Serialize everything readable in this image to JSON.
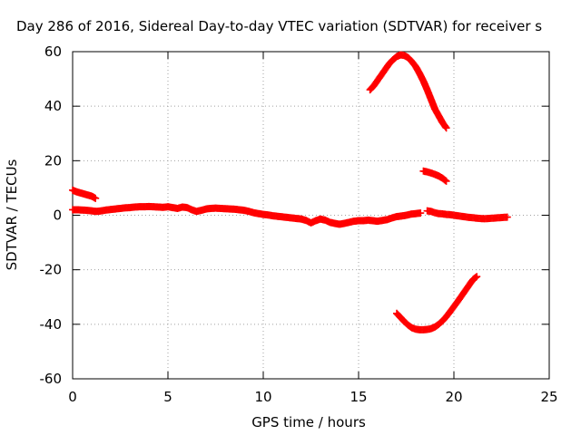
{
  "chart_data": {
    "type": "scatter",
    "title": "Day 286 of 2016, Sidereal Day-to-day VTEC variation (SDTVAR) for receiver s",
    "xlabel": "GPS time / hours",
    "ylabel": "SDTVAR / TECUs",
    "xlim": [
      0,
      25
    ],
    "ylim": [
      -60,
      60
    ],
    "xticks": [
      0,
      5,
      10,
      15,
      20,
      25
    ],
    "yticks": [
      -60,
      -40,
      -20,
      0,
      20,
      40,
      60
    ],
    "xtick_labels": [
      "0",
      "5",
      "10",
      "15",
      "20",
      "25"
    ],
    "ytick_labels": [
      "-60",
      "-40",
      "-20",
      "0",
      "20",
      "40",
      "60"
    ],
    "grid": true,
    "marker": "plus",
    "color": "#ff0000",
    "series": [
      {
        "x": [
          0,
          0.1,
          0.2,
          0.3,
          0.4,
          0.5,
          0.6,
          0.7,
          0.8,
          0.9,
          1.0,
          1.1,
          1.2
        ],
        "y": [
          9.2,
          8.9,
          8.6,
          8.4,
          8.2,
          8.0,
          7.8,
          7.6,
          7.4,
          7.2,
          7.0,
          6.6,
          6.2
        ]
      },
      {
        "x": [
          0,
          0.25,
          0.5,
          0.75,
          1.0,
          1.25,
          1.5,
          1.75,
          2.0,
          2.25,
          2.5,
          2.75,
          3.0,
          3.25,
          3.5,
          3.75,
          4.0,
          4.25,
          4.5,
          4.75,
          5.0,
          5.25,
          5.5,
          5.75,
          6.0,
          6.25,
          6.5,
          6.75,
          7.0,
          7.25,
          7.5,
          7.75,
          8.0,
          8.25,
          8.5,
          8.75,
          9.0,
          9.25,
          9.5,
          9.75,
          10.0,
          10.25,
          10.5,
          10.75,
          11.0,
          11.25,
          11.5,
          11.75,
          12.0,
          12.25,
          12.5,
          12.75,
          13.0,
          13.25,
          13.5,
          13.75,
          14.0,
          14.25,
          14.5,
          14.75,
          15.0,
          15.25,
          15.5,
          15.75,
          16.0,
          16.25,
          16.5,
          16.75,
          17.0,
          17.25,
          17.5,
          17.75,
          18.0,
          18.25
        ],
        "y": [
          2.0,
          2.0,
          1.9,
          1.8,
          1.6,
          1.4,
          1.6,
          1.9,
          2.1,
          2.3,
          2.5,
          2.7,
          2.8,
          3.0,
          3.1,
          3.1,
          3.2,
          3.1,
          3.0,
          2.9,
          3.1,
          2.8,
          2.5,
          3.0,
          2.8,
          2.0,
          1.4,
          1.8,
          2.3,
          2.5,
          2.6,
          2.5,
          2.4,
          2.3,
          2.2,
          2.0,
          1.8,
          1.4,
          0.9,
          0.6,
          0.3,
          0.1,
          -0.2,
          -0.4,
          -0.6,
          -0.8,
          -1.0,
          -1.2,
          -1.4,
          -1.9,
          -2.8,
          -2.0,
          -1.4,
          -1.8,
          -2.6,
          -3.0,
          -3.3,
          -3.0,
          -2.6,
          -2.2,
          -2.0,
          -2.0,
          -1.8,
          -2.0,
          -2.2,
          -1.9,
          -1.6,
          -1.0,
          -0.5,
          -0.3,
          0.0,
          0.4,
          0.6,
          0.8
        ]
      },
      {
        "x": [
          18.6,
          18.8,
          19.0,
          19.2,
          19.4,
          19.6,
          19.8,
          20.0,
          20.2,
          20.4,
          20.6,
          20.8,
          21.0,
          21.2,
          21.4,
          21.6,
          21.8,
          22.0,
          22.2,
          22.4,
          22.6,
          22.8
        ],
        "y": [
          1.6,
          1.4,
          0.9,
          0.6,
          0.5,
          0.3,
          0.2,
          0.0,
          -0.2,
          -0.4,
          -0.6,
          -0.8,
          -0.9,
          -1.1,
          -1.2,
          -1.3,
          -1.2,
          -1.1,
          -1.0,
          -0.9,
          -0.8,
          -0.7
        ]
      },
      {
        "x": [
          15.6,
          15.8,
          16.0,
          16.2,
          16.4,
          16.6,
          16.8,
          17.0,
          17.2,
          17.4,
          17.6,
          17.8,
          18.0,
          18.2,
          18.4,
          18.6,
          18.8,
          19.0,
          19.2,
          19.4,
          19.6
        ],
        "y": [
          46.0,
          47.5,
          49.5,
          51.5,
          53.5,
          55.5,
          57.0,
          58.2,
          58.8,
          58.6,
          57.8,
          56.3,
          54.5,
          52.0,
          49.2,
          46.0,
          42.5,
          39.0,
          36.5,
          34.0,
          32.0
        ]
      },
      {
        "x": [
          18.4,
          18.6,
          18.8,
          19.0,
          19.2,
          19.4,
          19.6
        ],
        "y": [
          16.2,
          15.9,
          15.5,
          15.0,
          14.4,
          13.6,
          12.5
        ]
      },
      {
        "x": [
          17.0,
          17.2,
          17.4,
          17.6,
          17.8,
          18.0,
          18.2,
          18.4,
          18.6,
          18.8,
          19.0,
          19.2,
          19.4,
          19.6,
          19.8,
          20.0,
          20.2,
          20.4,
          20.6,
          20.8,
          21.0,
          21.2
        ],
        "y": [
          -36.0,
          -37.5,
          -39.0,
          -40.3,
          -41.3,
          -41.8,
          -42.0,
          -42.0,
          -41.9,
          -41.6,
          -41.0,
          -40.0,
          -38.8,
          -37.2,
          -35.4,
          -33.5,
          -31.6,
          -29.6,
          -27.6,
          -25.6,
          -23.6,
          -22.5
        ]
      }
    ]
  }
}
